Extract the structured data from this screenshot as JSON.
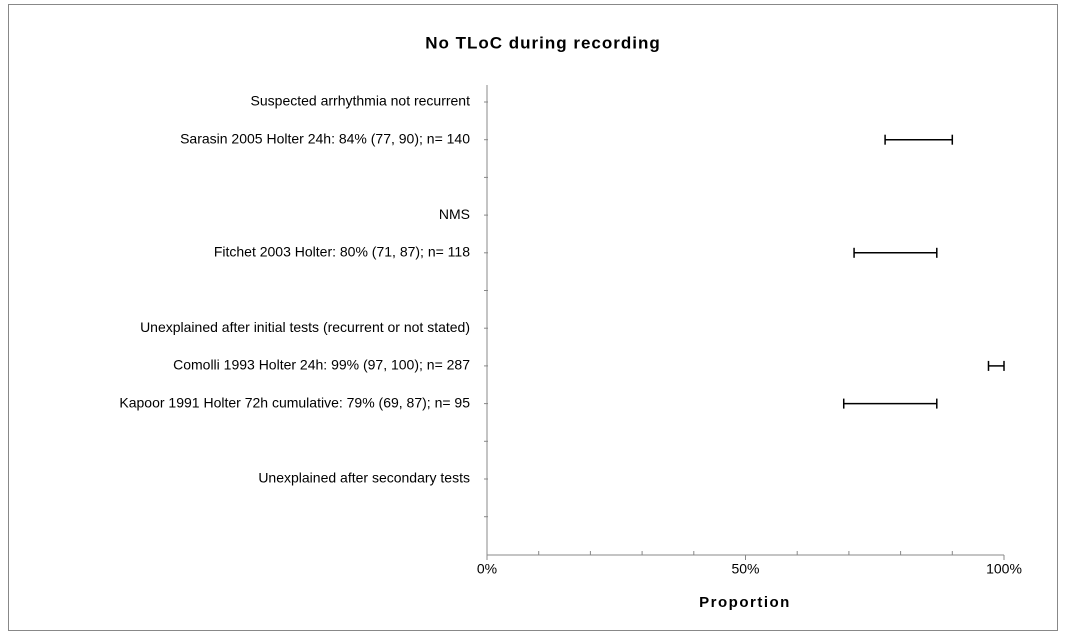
{
  "chart_data": {
    "type": "forest",
    "title": "No TLoC during recording",
    "x_label": "Proportion",
    "categories": [
      "Suspected arrhythmia not recurrent",
      "Sarasin 2005 Holter 24h: 84% (77, 90); n= 140",
      null,
      "NMS",
      "Fitchet 2003 Holter: 80% (71, 87); n= 118",
      null,
      "Unexplained after initial tests (recurrent or not stated)",
      "Comolli 1993 Holter 24h: 99% (97, 100); n= 287",
      "Kapoor 1991 Holter 72h cumulative: 79% (69, 87); n= 95",
      null,
      "Unexplained after secondary tests",
      null
    ],
    "lower": [
      null,
      77,
      null,
      null,
      71,
      null,
      null,
      97,
      69,
      null,
      null,
      null
    ],
    "upper": [
      null,
      90,
      null,
      null,
      87,
      null,
      null,
      100,
      87,
      null,
      null,
      null
    ],
    "color": "#000000",
    "xlim": [
      0,
      100
    ],
    "xticks": [
      {
        "value": 0,
        "label": "0%"
      },
      {
        "value": 50,
        "label": "50%"
      },
      {
        "value": 100,
        "label": "100%"
      }
    ],
    "xminorticks": [
      10,
      20,
      30,
      40,
      60,
      70,
      80,
      90
    ]
  }
}
